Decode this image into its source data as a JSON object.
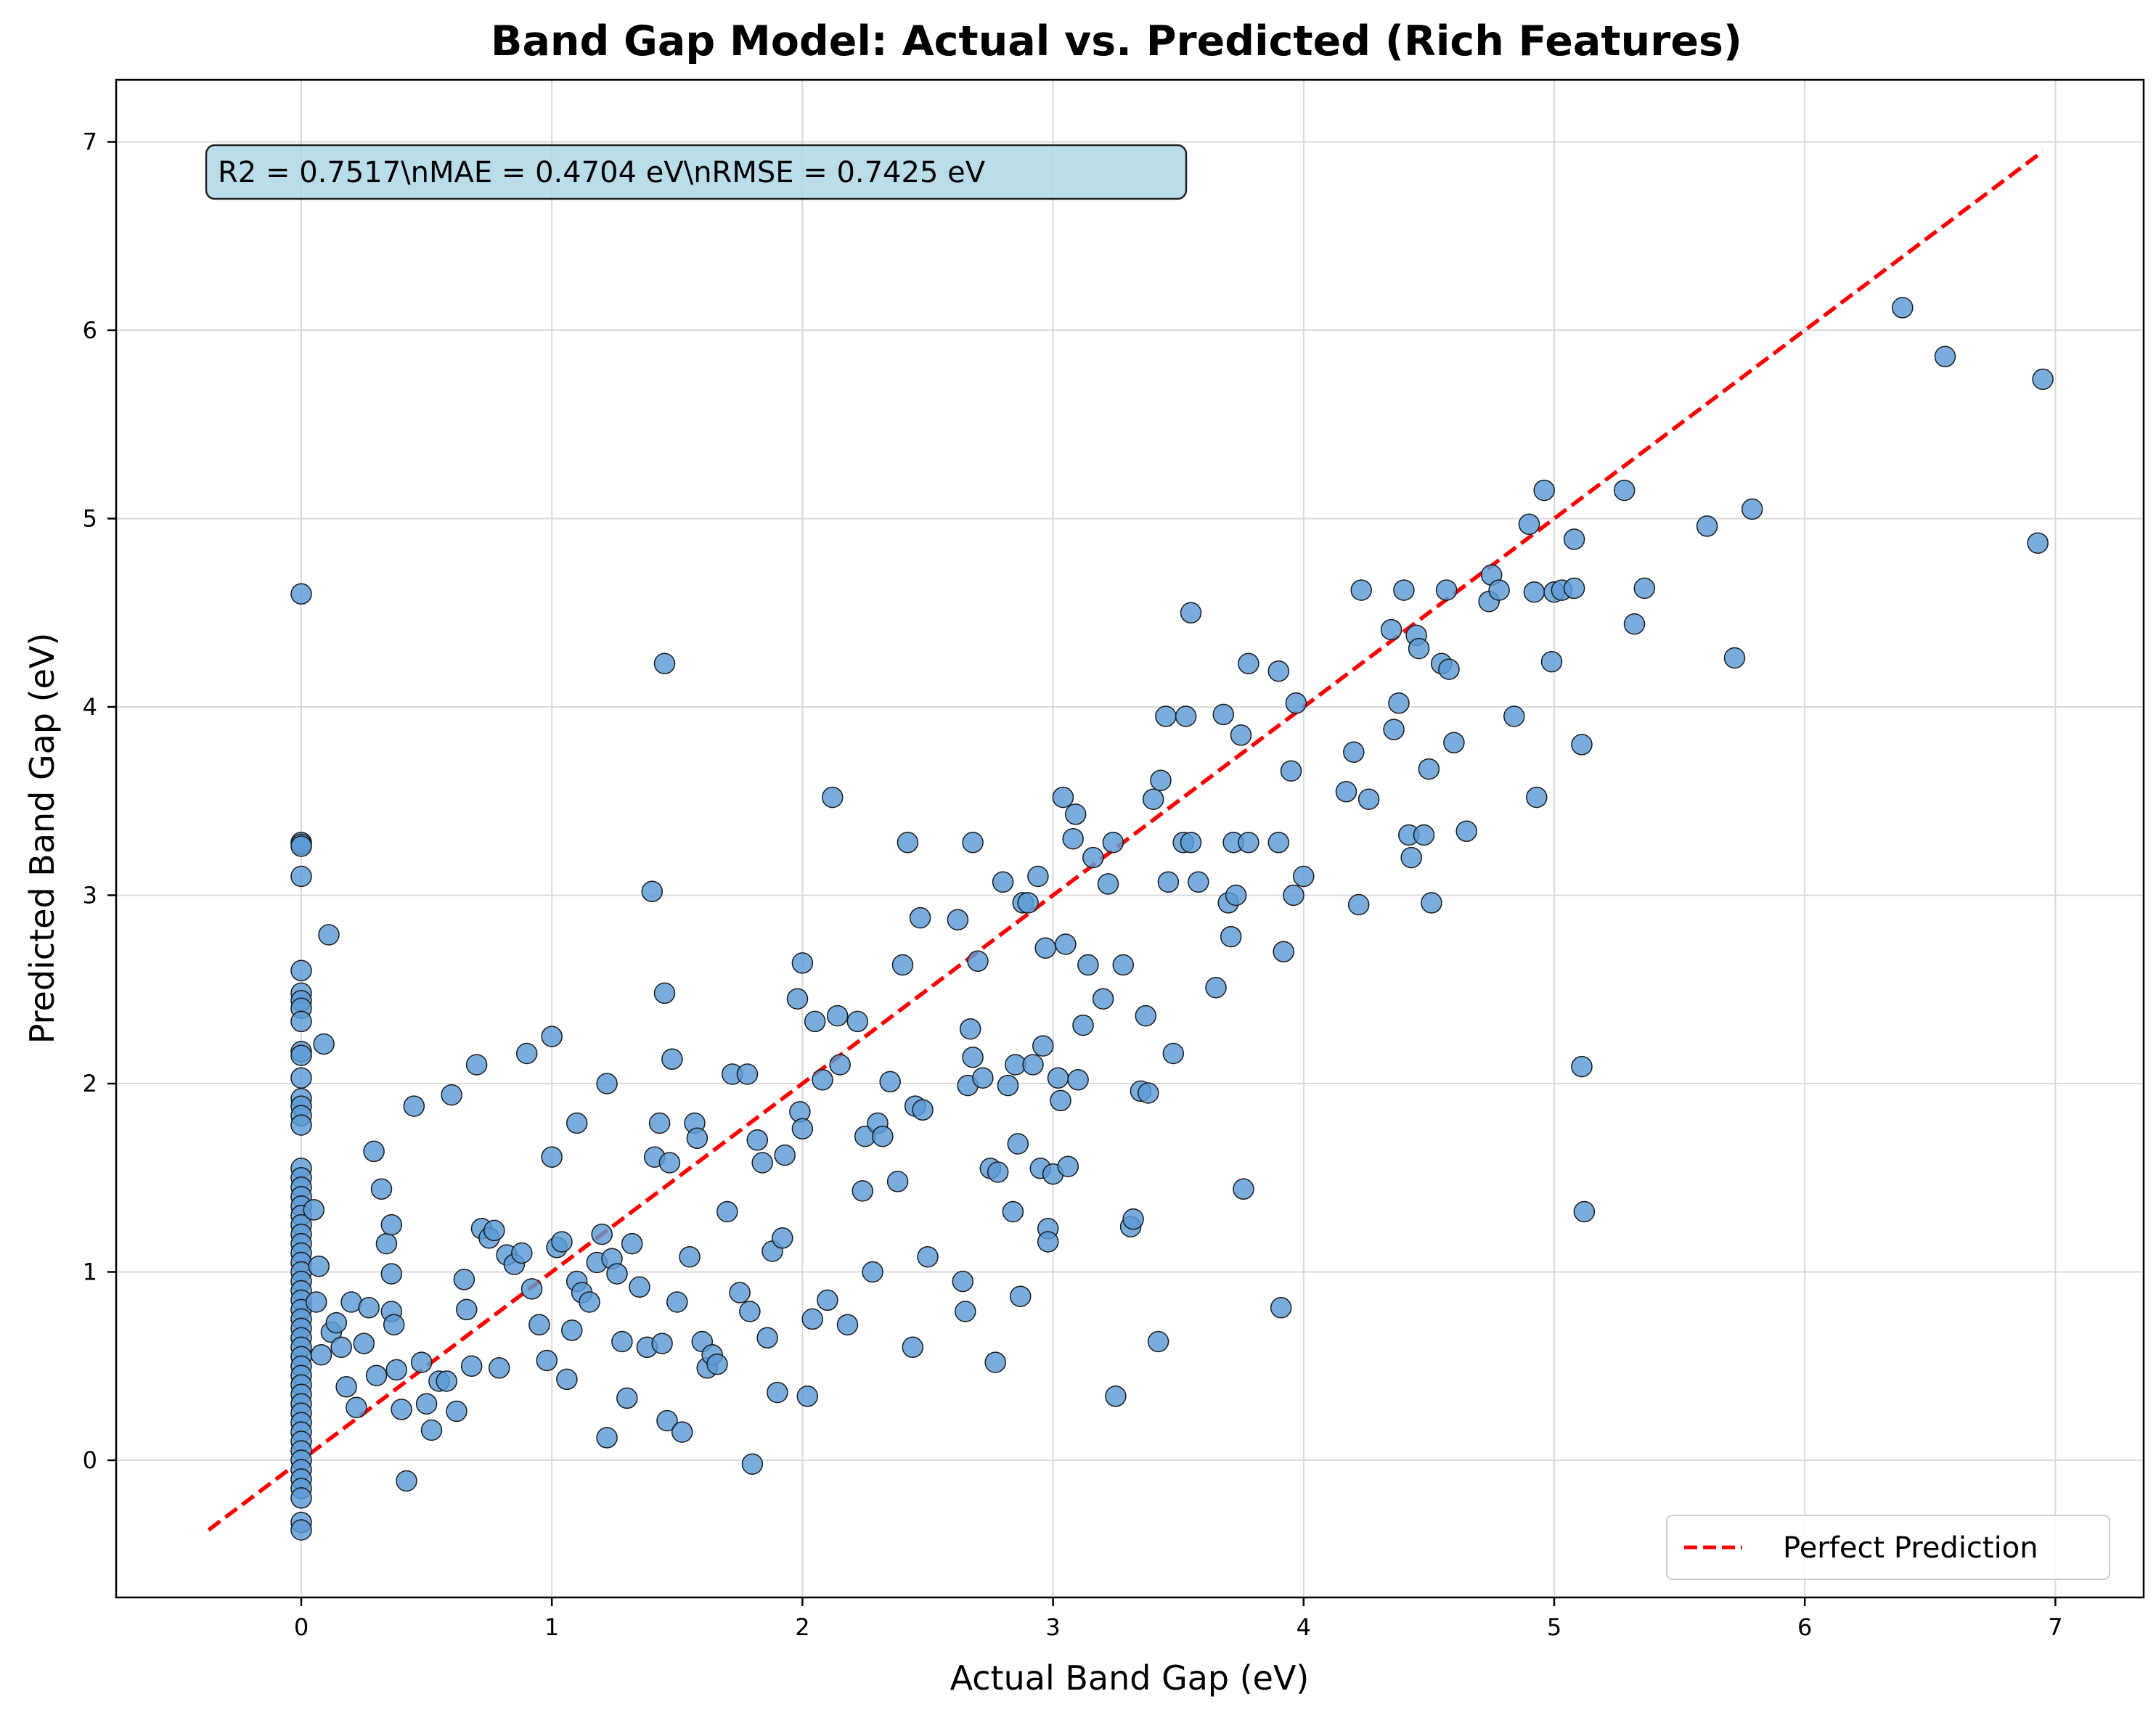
{
  "chart_data": {
    "type": "scatter",
    "title": "Band Gap Model: Actual vs. Predicted (Rich Features)",
    "xlabel": "Actual Band Gap (eV)",
    "ylabel": "Predicted Band Gap (eV)",
    "xlim": [
      -0.75,
      7.3
    ],
    "ylim": [
      -0.75,
      7.3
    ],
    "xticks": [
      0,
      1,
      2,
      3,
      4,
      5,
      6,
      7
    ],
    "yticks": [
      0,
      1,
      2,
      3,
      4,
      5,
      6,
      7
    ],
    "grid": true,
    "stats_text": "R2 = 0.7517\\nMAE = 0.4704 eV\\nRMSE = 0.7425 eV",
    "legend": {
      "position": "lower-right",
      "entries": [
        "Perfect Prediction"
      ]
    },
    "colors": {
      "points": "#5b9bd5",
      "point_edge": "#1a1a1a",
      "line": "#ff0000",
      "stats_box": "#add8e6"
    },
    "reference_line": {
      "name": "Perfect Prediction",
      "x": [
        -0.37,
        6.95
      ],
      "y": [
        -0.37,
        6.95
      ]
    },
    "series": [
      {
        "points": [
          [
            0,
            4.6
          ],
          [
            0,
            3.28
          ],
          [
            0,
            3.27
          ],
          [
            0,
            3.26
          ],
          [
            0,
            3.1
          ],
          [
            0,
            2.6
          ],
          [
            0,
            2.48
          ],
          [
            0,
            2.44
          ],
          [
            0,
            2.4
          ],
          [
            0,
            2.33
          ],
          [
            0,
            2.17
          ],
          [
            0,
            2.15
          ],
          [
            0,
            2.03
          ],
          [
            0,
            1.92
          ],
          [
            0,
            1.88
          ],
          [
            0,
            1.83
          ],
          [
            0,
            1.78
          ],
          [
            0,
            1.55
          ],
          [
            0,
            1.5
          ],
          [
            0,
            1.45
          ],
          [
            0,
            1.4
          ],
          [
            0,
            1.35
          ],
          [
            0,
            1.3
          ],
          [
            0,
            1.25
          ],
          [
            0,
            1.2
          ],
          [
            0,
            1.15
          ],
          [
            0,
            1.1
          ],
          [
            0,
            1.05
          ],
          [
            0,
            1.0
          ],
          [
            0,
            0.95
          ],
          [
            0,
            0.9
          ],
          [
            0,
            0.85
          ],
          [
            0,
            0.8
          ],
          [
            0,
            0.75
          ],
          [
            0,
            0.7
          ],
          [
            0,
            0.65
          ],
          [
            0,
            0.6
          ],
          [
            0,
            0.55
          ],
          [
            0,
            0.5
          ],
          [
            0,
            0.45
          ],
          [
            0,
            0.4
          ],
          [
            0,
            0.35
          ],
          [
            0,
            0.3
          ],
          [
            0,
            0.25
          ],
          [
            0,
            0.2
          ],
          [
            0,
            0.15
          ],
          [
            0,
            0.1
          ],
          [
            0,
            0.05
          ],
          [
            0,
            0.0
          ],
          [
            0,
            -0.05
          ],
          [
            0,
            -0.1
          ],
          [
            0,
            -0.15
          ],
          [
            0,
            -0.2
          ],
          [
            0,
            -0.33
          ],
          [
            0,
            -0.37
          ],
          [
            0.05,
            1.33
          ],
          [
            0.06,
            0.84
          ],
          [
            0.07,
            1.03
          ],
          [
            0.08,
            0.56
          ],
          [
            0.09,
            2.21
          ],
          [
            0.11,
            2.79
          ],
          [
            0.12,
            0.68
          ],
          [
            0.14,
            0.73
          ],
          [
            0.16,
            0.6
          ],
          [
            0.18,
            0.39
          ],
          [
            0.2,
            0.84
          ],
          [
            0.22,
            0.28
          ],
          [
            0.25,
            0.62
          ],
          [
            0.27,
            0.81
          ],
          [
            0.29,
            1.64
          ],
          [
            0.3,
            0.45
          ],
          [
            0.32,
            1.44
          ],
          [
            0.34,
            1.15
          ],
          [
            0.36,
            1.25
          ],
          [
            0.36,
            0.99
          ],
          [
            0.36,
            0.79
          ],
          [
            0.37,
            0.72
          ],
          [
            0.38,
            0.48
          ],
          [
            0.4,
            0.27
          ],
          [
            0.42,
            -0.11
          ],
          [
            0.45,
            1.88
          ],
          [
            0.48,
            0.52
          ],
          [
            0.5,
            0.3
          ],
          [
            0.52,
            0.16
          ],
          [
            0.55,
            0.42
          ],
          [
            0.58,
            0.42
          ],
          [
            0.6,
            1.94
          ],
          [
            0.62,
            0.26
          ],
          [
            0.65,
            0.96
          ],
          [
            0.66,
            0.8
          ],
          [
            0.68,
            0.5
          ],
          [
            0.7,
            2.1
          ],
          [
            0.72,
            1.23
          ],
          [
            0.75,
            1.18
          ],
          [
            0.77,
            1.22
          ],
          [
            0.79,
            0.49
          ],
          [
            0.82,
            1.09
          ],
          [
            0.85,
            1.04
          ],
          [
            0.88,
            1.1
          ],
          [
            0.9,
            2.16
          ],
          [
            0.92,
            0.91
          ],
          [
            0.95,
            0.72
          ],
          [
            0.98,
            0.53
          ],
          [
            1.0,
            2.25
          ],
          [
            1.0,
            1.61
          ],
          [
            1.02,
            1.13
          ],
          [
            1.04,
            1.16
          ],
          [
            1.06,
            0.43
          ],
          [
            1.08,
            0.69
          ],
          [
            1.1,
            1.79
          ],
          [
            1.1,
            0.95
          ],
          [
            1.12,
            0.89
          ],
          [
            1.15,
            0.84
          ],
          [
            1.18,
            1.05
          ],
          [
            1.2,
            1.2
          ],
          [
            1.22,
            2.0
          ],
          [
            1.22,
            0.12
          ],
          [
            1.24,
            1.07
          ],
          [
            1.26,
            0.99
          ],
          [
            1.28,
            0.63
          ],
          [
            1.3,
            0.33
          ],
          [
            1.32,
            1.15
          ],
          [
            1.35,
            0.92
          ],
          [
            1.38,
            0.6
          ],
          [
            1.4,
            3.02
          ],
          [
            1.41,
            1.61
          ],
          [
            1.43,
            1.79
          ],
          [
            1.44,
            0.62
          ],
          [
            1.45,
            4.23
          ],
          [
            1.45,
            2.48
          ],
          [
            1.46,
            0.21
          ],
          [
            1.47,
            1.58
          ],
          [
            1.48,
            2.13
          ],
          [
            1.5,
            0.84
          ],
          [
            1.52,
            0.15
          ],
          [
            1.55,
            1.08
          ],
          [
            1.57,
            1.79
          ],
          [
            1.58,
            1.71
          ],
          [
            1.6,
            0.63
          ],
          [
            1.62,
            0.49
          ],
          [
            1.64,
            0.56
          ],
          [
            1.66,
            0.51
          ],
          [
            1.7,
            1.32
          ],
          [
            1.72,
            2.05
          ],
          [
            1.75,
            0.89
          ],
          [
            1.78,
            2.05
          ],
          [
            1.79,
            0.79
          ],
          [
            1.8,
            -0.02
          ],
          [
            1.82,
            1.7
          ],
          [
            1.84,
            1.58
          ],
          [
            1.86,
            0.65
          ],
          [
            1.88,
            1.11
          ],
          [
            1.9,
            0.36
          ],
          [
            1.92,
            1.18
          ],
          [
            1.93,
            1.62
          ],
          [
            1.98,
            2.45
          ],
          [
            1.99,
            1.85
          ],
          [
            2.0,
            2.64
          ],
          [
            2.0,
            1.76
          ],
          [
            2.02,
            0.34
          ],
          [
            2.04,
            0.75
          ],
          [
            2.05,
            2.33
          ],
          [
            2.08,
            2.02
          ],
          [
            2.1,
            0.85
          ],
          [
            2.12,
            3.52
          ],
          [
            2.14,
            2.36
          ],
          [
            2.15,
            2.1
          ],
          [
            2.18,
            0.72
          ],
          [
            2.22,
            2.33
          ],
          [
            2.24,
            1.43
          ],
          [
            2.25,
            1.72
          ],
          [
            2.28,
            1.0
          ],
          [
            2.3,
            1.79
          ],
          [
            2.32,
            1.72
          ],
          [
            2.35,
            2.01
          ],
          [
            2.38,
            1.48
          ],
          [
            2.4,
            2.63
          ],
          [
            2.42,
            3.28
          ],
          [
            2.44,
            0.6
          ],
          [
            2.45,
            1.88
          ],
          [
            2.47,
            2.88
          ],
          [
            2.48,
            1.86
          ],
          [
            2.5,
            1.08
          ],
          [
            2.62,
            2.87
          ],
          [
            2.64,
            0.95
          ],
          [
            2.65,
            0.79
          ],
          [
            2.66,
            1.99
          ],
          [
            2.67,
            2.29
          ],
          [
            2.68,
            2.14
          ],
          [
            2.68,
            3.28
          ],
          [
            2.7,
            2.65
          ],
          [
            2.72,
            2.03
          ],
          [
            2.75,
            1.55
          ],
          [
            2.77,
            0.52
          ],
          [
            2.78,
            1.53
          ],
          [
            2.8,
            3.07
          ],
          [
            2.82,
            1.99
          ],
          [
            2.84,
            1.32
          ],
          [
            2.85,
            2.1
          ],
          [
            2.86,
            1.68
          ],
          [
            2.87,
            0.87
          ],
          [
            2.88,
            2.96
          ],
          [
            2.9,
            2.96
          ],
          [
            2.92,
            2.1
          ],
          [
            2.94,
            3.1
          ],
          [
            2.95,
            1.55
          ],
          [
            2.96,
            2.2
          ],
          [
            2.97,
            2.72
          ],
          [
            2.98,
            1.23
          ],
          [
            2.98,
            1.16
          ],
          [
            3.0,
            1.52
          ],
          [
            3.02,
            2.03
          ],
          [
            3.03,
            1.91
          ],
          [
            3.04,
            3.52
          ],
          [
            3.05,
            2.74
          ],
          [
            3.06,
            1.56
          ],
          [
            3.08,
            3.3
          ],
          [
            3.09,
            3.43
          ],
          [
            3.1,
            2.02
          ],
          [
            3.12,
            2.31
          ],
          [
            3.14,
            2.63
          ],
          [
            3.16,
            3.2
          ],
          [
            3.2,
            2.45
          ],
          [
            3.22,
            3.06
          ],
          [
            3.24,
            3.28
          ],
          [
            3.25,
            0.34
          ],
          [
            3.28,
            2.63
          ],
          [
            3.31,
            1.24
          ],
          [
            3.32,
            1.28
          ],
          [
            3.35,
            1.96
          ],
          [
            3.37,
            2.36
          ],
          [
            3.38,
            1.95
          ],
          [
            3.4,
            3.51
          ],
          [
            3.42,
            0.63
          ],
          [
            3.43,
            3.61
          ],
          [
            3.45,
            3.95
          ],
          [
            3.46,
            3.07
          ],
          [
            3.48,
            2.16
          ],
          [
            3.52,
            3.28
          ],
          [
            3.53,
            3.95
          ],
          [
            3.55,
            4.5
          ],
          [
            3.55,
            3.28
          ],
          [
            3.58,
            3.07
          ],
          [
            3.65,
            2.51
          ],
          [
            3.68,
            3.96
          ],
          [
            3.7,
            2.96
          ],
          [
            3.71,
            2.78
          ],
          [
            3.72,
            3.28
          ],
          [
            3.73,
            3.0
          ],
          [
            3.75,
            3.85
          ],
          [
            3.76,
            1.44
          ],
          [
            3.78,
            4.23
          ],
          [
            3.78,
            3.28
          ],
          [
            3.9,
            3.28
          ],
          [
            3.9,
            4.19
          ],
          [
            3.91,
            0.81
          ],
          [
            3.92,
            2.7
          ],
          [
            3.95,
            3.66
          ],
          [
            3.96,
            3.0
          ],
          [
            3.97,
            4.02
          ],
          [
            4.0,
            3.1
          ],
          [
            4.17,
            3.55
          ],
          [
            4.2,
            3.76
          ],
          [
            4.22,
            2.95
          ],
          [
            4.23,
            4.62
          ],
          [
            4.26,
            3.51
          ],
          [
            4.35,
            4.41
          ],
          [
            4.36,
            3.88
          ],
          [
            4.38,
            4.02
          ],
          [
            4.4,
            4.62
          ],
          [
            4.42,
            3.32
          ],
          [
            4.43,
            3.2
          ],
          [
            4.45,
            4.38
          ],
          [
            4.46,
            4.31
          ],
          [
            4.48,
            3.32
          ],
          [
            4.5,
            3.67
          ],
          [
            4.51,
            2.96
          ],
          [
            4.55,
            4.23
          ],
          [
            4.57,
            4.62
          ],
          [
            4.58,
            4.2
          ],
          [
            4.6,
            3.81
          ],
          [
            4.65,
            3.34
          ],
          [
            4.74,
            4.56
          ],
          [
            4.75,
            4.7
          ],
          [
            4.78,
            4.62
          ],
          [
            4.84,
            3.95
          ],
          [
            4.9,
            4.97
          ],
          [
            4.92,
            4.61
          ],
          [
            4.93,
            3.52
          ],
          [
            4.96,
            5.15
          ],
          [
            4.99,
            4.24
          ],
          [
            5.0,
            4.61
          ],
          [
            5.03,
            4.62
          ],
          [
            5.08,
            4.89
          ],
          [
            5.08,
            4.63
          ],
          [
            5.11,
            3.8
          ],
          [
            5.11,
            2.09
          ],
          [
            5.12,
            1.32
          ],
          [
            5.28,
            5.15
          ],
          [
            5.32,
            4.44
          ],
          [
            5.36,
            4.63
          ],
          [
            5.61,
            4.96
          ],
          [
            5.72,
            4.26
          ],
          [
            5.79,
            5.05
          ],
          [
            6.39,
            6.12
          ],
          [
            6.56,
            5.86
          ],
          [
            6.93,
            4.87
          ],
          [
            6.95,
            5.74
          ]
        ]
      }
    ]
  }
}
